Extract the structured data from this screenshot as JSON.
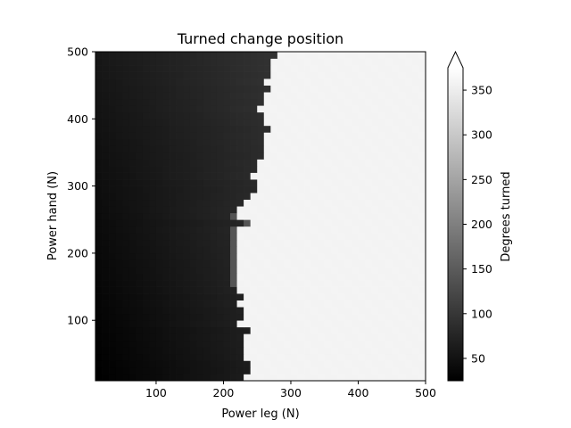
{
  "chart_data": {
    "type": "heatmap",
    "title": "Turned change position",
    "xlabel": "Power leg (N)",
    "ylabel": "Power hand (N)",
    "xlim": [
      10,
      500
    ],
    "ylim": [
      10,
      500
    ],
    "xticks": [
      100,
      200,
      300,
      400,
      500
    ],
    "yticks": [
      100,
      200,
      300,
      400,
      500
    ],
    "grid": false,
    "colormap": "gray",
    "colorbar": {
      "label": "Degrees turned",
      "ticks": [
        50,
        100,
        150,
        200,
        250,
        300,
        350
      ],
      "range": [
        25,
        375
      ],
      "extend": "max"
    },
    "grid_spec": {
      "x_start": 10,
      "x_step": 10,
      "x_count": 49,
      "y_start": 10,
      "y_step": 10,
      "y_count": 49
    },
    "boundary_x_by_y": [
      {
        "y": 10,
        "x": 230
      },
      {
        "y": 20,
        "x": 240
      },
      {
        "y": 30,
        "x": 240
      },
      {
        "y": 40,
        "x": 230
      },
      {
        "y": 50,
        "x": 230
      },
      {
        "y": 60,
        "x": 230
      },
      {
        "y": 70,
        "x": 230
      },
      {
        "y": 80,
        "x": 240
      },
      {
        "y": 90,
        "x": 220
      },
      {
        "y": 100,
        "x": 230
      },
      {
        "y": 110,
        "x": 230
      },
      {
        "y": 120,
        "x": 220
      },
      {
        "y": 130,
        "x": 230
      },
      {
        "y": 140,
        "x": 220
      },
      {
        "y": 150,
        "x": 220
      },
      {
        "y": 160,
        "x": 220
      },
      {
        "y": 170,
        "x": 220
      },
      {
        "y": 180,
        "x": 220
      },
      {
        "y": 190,
        "x": 220
      },
      {
        "y": 200,
        "x": 220
      },
      {
        "y": 210,
        "x": 220
      },
      {
        "y": 220,
        "x": 220
      },
      {
        "y": 230,
        "x": 220
      },
      {
        "y": 240,
        "x": 240
      },
      {
        "y": 250,
        "x": 220
      },
      {
        "y": 260,
        "x": 220
      },
      {
        "y": 270,
        "x": 230
      },
      {
        "y": 280,
        "x": 240
      },
      {
        "y": 290,
        "x": 250
      },
      {
        "y": 300,
        "x": 250
      },
      {
        "y": 310,
        "x": 240
      },
      {
        "y": 320,
        "x": 250
      },
      {
        "y": 330,
        "x": 250
      },
      {
        "y": 340,
        "x": 260
      },
      {
        "y": 350,
        "x": 260
      },
      {
        "y": 360,
        "x": 260
      },
      {
        "y": 370,
        "x": 260
      },
      {
        "y": 380,
        "x": 270
      },
      {
        "y": 390,
        "x": 260
      },
      {
        "y": 400,
        "x": 260
      },
      {
        "y": 410,
        "x": 250
      },
      {
        "y": 420,
        "x": 260
      },
      {
        "y": 430,
        "x": 260
      },
      {
        "y": 440,
        "x": 270
      },
      {
        "y": 450,
        "x": 260
      },
      {
        "y": 460,
        "x": 270
      },
      {
        "y": 470,
        "x": 270
      },
      {
        "y": 480,
        "x": 270
      },
      {
        "y": 490,
        "x": 280
      }
    ],
    "low_region_value_range": [
      25,
      95
    ],
    "high_region_value": 360
  }
}
